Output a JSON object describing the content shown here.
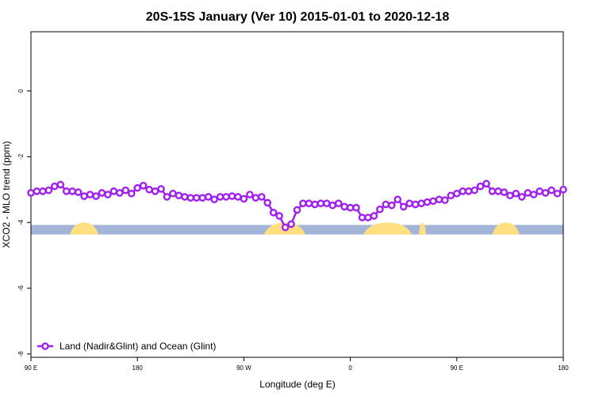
{
  "chart_data": {
    "type": "line",
    "title": "20S-15S January (Ver 10)   2015-01-01 to 2020-12-18",
    "xlabel": "Longitude (deg E)",
    "ylabel": "XCO2 - MLO trend (ppm)",
    "xlim": [
      90,
      540
    ],
    "ylim": [
      -8.1,
      1.8
    ],
    "x_ticks": [
      {
        "value": 90,
        "label": "90 E"
      },
      {
        "value": 180,
        "label": "180"
      },
      {
        "value": 270,
        "label": "90 W"
      },
      {
        "value": 360,
        "label": "0"
      },
      {
        "value": 450,
        "label": "90 E"
      },
      {
        "value": 540,
        "label": "180"
      }
    ],
    "y_ticks": [
      {
        "value": 0,
        "label": "0"
      },
      {
        "value": -2,
        "label": "-2"
      },
      {
        "value": -4,
        "label": "-4"
      },
      {
        "value": -6,
        "label": "-6"
      },
      {
        "value": -8,
        "label": "-8"
      }
    ],
    "grid": false,
    "legend_position": "bottom-left",
    "colors": {
      "series": "#a020f0",
      "ocean": "#a2b5d8",
      "land": "#ffdf80"
    },
    "surface_band": {
      "y": -4.22,
      "land_ranges": [
        [
          123,
          147
        ],
        [
          287,
          322
        ],
        [
          371,
          412
        ],
        [
          418,
          424
        ],
        [
          480,
          503
        ]
      ]
    },
    "series": [
      {
        "name": "Land (Nadir&Glint) and Ocean (Glint)",
        "x": [
          90,
          95,
          100,
          105,
          110,
          115,
          120,
          125,
          130,
          135,
          140,
          145,
          150,
          155,
          160,
          165,
          170,
          175,
          180,
          185,
          190,
          195,
          200,
          205,
          210,
          215,
          220,
          225,
          230,
          235,
          240,
          245,
          250,
          255,
          260,
          265,
          270,
          275,
          280,
          285,
          290,
          295,
          300,
          305,
          310,
          315,
          320,
          325,
          330,
          335,
          340,
          345,
          350,
          355,
          360,
          365,
          370,
          375,
          380,
          385,
          390,
          395,
          400,
          405,
          410,
          415,
          420,
          425,
          430,
          435,
          440,
          445,
          450,
          455,
          460,
          465,
          470,
          475,
          480,
          485,
          490,
          495,
          500,
          505,
          510,
          515,
          520,
          525,
          530,
          535,
          540
        ],
        "y": [
          -3.1,
          -3.05,
          -3.05,
          -3.02,
          -2.9,
          -2.85,
          -3.05,
          -3.05,
          -3.08,
          -3.2,
          -3.15,
          -3.2,
          -3.1,
          -3.15,
          -3.05,
          -3.1,
          -3.02,
          -3.12,
          -2.95,
          -2.88,
          -3.0,
          -3.05,
          -2.98,
          -3.22,
          -3.12,
          -3.18,
          -3.22,
          -3.25,
          -3.25,
          -3.25,
          -3.22,
          -3.3,
          -3.22,
          -3.22,
          -3.2,
          -3.22,
          -3.28,
          -3.15,
          -3.25,
          -3.22,
          -3.4,
          -3.7,
          -3.8,
          -4.15,
          -4.05,
          -3.62,
          -3.42,
          -3.42,
          -3.45,
          -3.42,
          -3.42,
          -3.48,
          -3.42,
          -3.52,
          -3.55,
          -3.55,
          -3.85,
          -3.85,
          -3.8,
          -3.6,
          -3.45,
          -3.48,
          -3.3,
          -3.52,
          -3.42,
          -3.45,
          -3.42,
          -3.38,
          -3.35,
          -3.3,
          -3.32,
          -3.18,
          -3.12,
          -3.05,
          -3.05,
          -3.02,
          -2.9,
          -2.82,
          -3.05,
          -3.05,
          -3.08,
          -3.18,
          -3.12,
          -3.22,
          -3.1,
          -3.15,
          -3.05,
          -3.1,
          -3.02,
          -3.12,
          -3.0
        ]
      }
    ]
  }
}
